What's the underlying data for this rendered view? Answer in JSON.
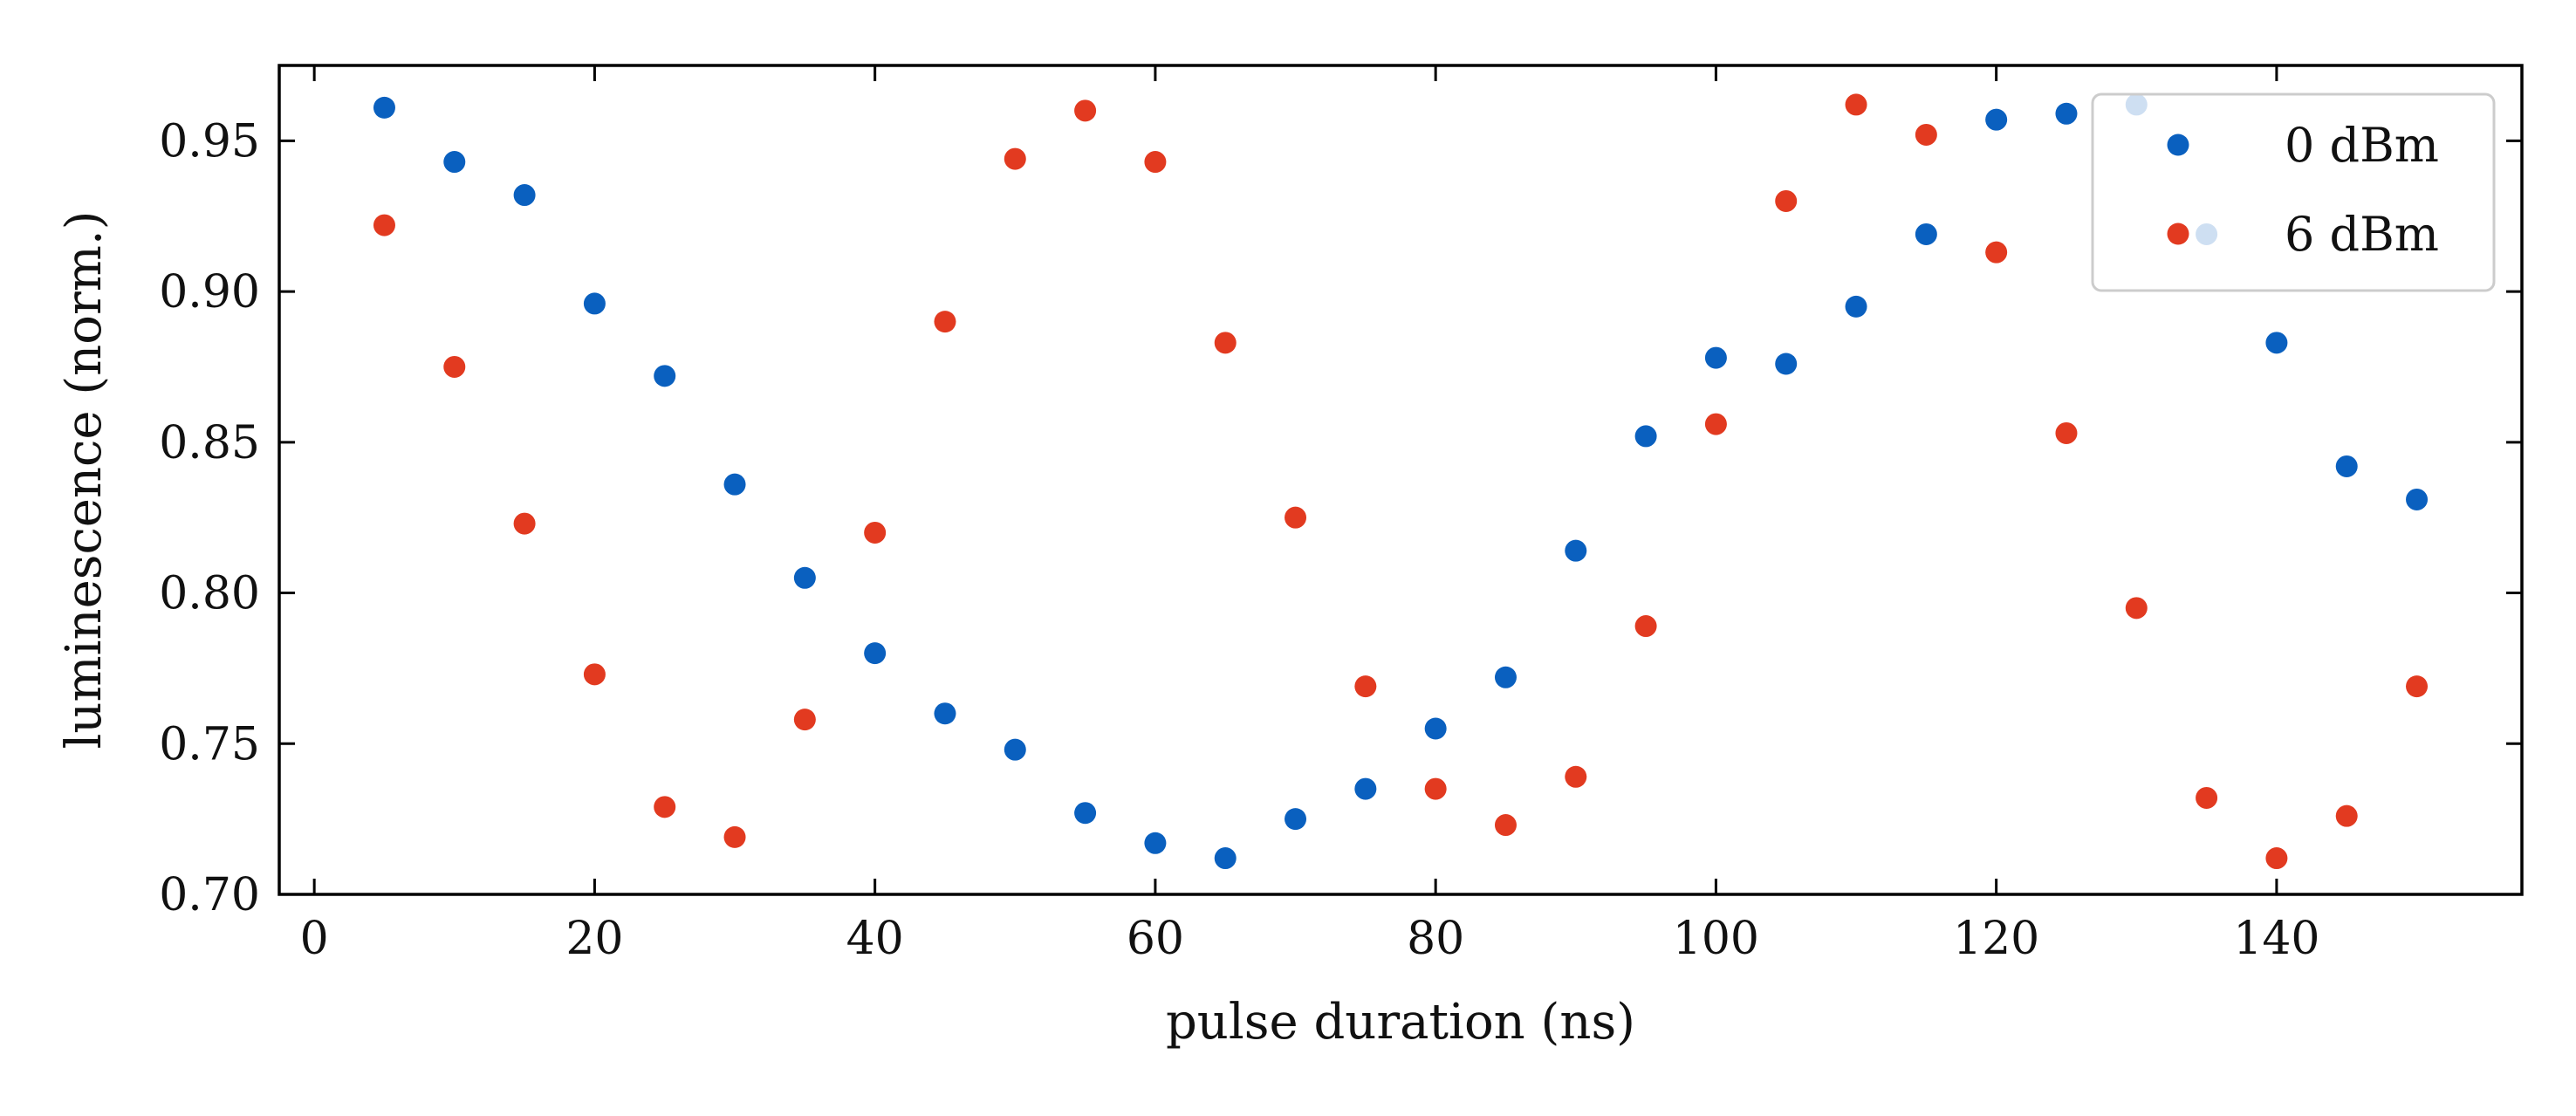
{
  "chart_data": {
    "type": "scatter",
    "title": "",
    "xlabel": "pulse duration (ns)",
    "ylabel": "luminescence (norm.)",
    "xlim": [
      -2.5,
      157.5
    ],
    "ylim": [
      0.7,
      0.975
    ],
    "xticks": [
      0,
      20,
      40,
      60,
      80,
      100,
      120,
      140
    ],
    "yticks": [
      0.7,
      0.75,
      0.8,
      0.85,
      0.9,
      0.95
    ],
    "xtick_labels": [
      "0",
      "20",
      "40",
      "60",
      "80",
      "100",
      "120",
      "140"
    ],
    "ytick_labels": [
      "0.70",
      "0.75",
      "0.80",
      "0.85",
      "0.90",
      "0.95"
    ],
    "legend_position": "top-right",
    "grid": false,
    "series": [
      {
        "name": "0 dBm",
        "color": "#0a60bf",
        "x": [
          5,
          10,
          15,
          20,
          25,
          30,
          35,
          40,
          45,
          50,
          55,
          60,
          65,
          70,
          75,
          80,
          85,
          90,
          95,
          100,
          105,
          110,
          115,
          120,
          125,
          130,
          135,
          140,
          145,
          150
        ],
        "y": [
          0.961,
          0.943,
          0.932,
          0.896,
          0.872,
          0.836,
          0.805,
          0.78,
          0.76,
          0.748,
          0.727,
          0.717,
          0.712,
          0.725,
          0.735,
          0.755,
          0.772,
          0.814,
          0.852,
          0.878,
          0.876,
          0.895,
          0.919,
          0.957,
          0.959,
          0.962,
          0.919,
          0.883,
          0.842,
          0.831
        ]
      },
      {
        "name": "6 dBm",
        "color": "#e23a20",
        "x": [
          5,
          10,
          15,
          20,
          25,
          30,
          35,
          40,
          45,
          50,
          55,
          60,
          65,
          70,
          75,
          80,
          85,
          90,
          95,
          100,
          105,
          110,
          115,
          120,
          125,
          130,
          135,
          140,
          145,
          150
        ],
        "y": [
          0.922,
          0.875,
          0.823,
          0.773,
          0.729,
          0.719,
          0.758,
          0.82,
          0.89,
          0.944,
          0.96,
          0.943,
          0.883,
          0.825,
          0.769,
          0.735,
          0.723,
          0.739,
          0.789,
          0.856,
          0.93,
          0.962,
          0.952,
          0.913,
          0.853,
          0.795,
          0.732,
          0.712,
          0.726,
          0.769
        ]
      }
    ]
  }
}
